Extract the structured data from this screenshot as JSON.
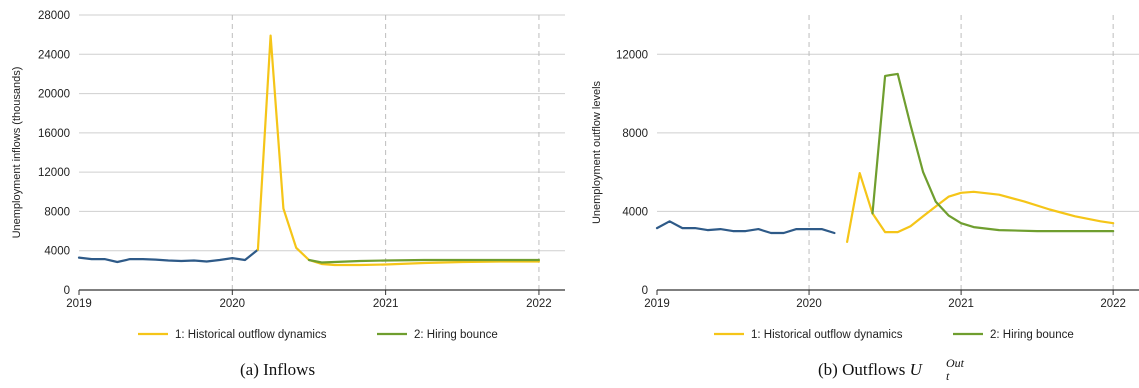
{
  "colors": {
    "historical": "#F5C518",
    "hiring": "#6F9E2F",
    "observed": "#2E5A88",
    "axis": "#333333",
    "grid": "#cfcfcf"
  },
  "chart_data": [
    {
      "type": "line",
      "title": "",
      "caption": "(a) Inflows",
      "xlabel": "",
      "ylabel": "Unemployment inflows (thousands)",
      "xlim": [
        2019,
        2022.17
      ],
      "ylim": [
        0,
        28000
      ],
      "x_ticks": [
        "2019",
        "2020",
        "2021",
        "2022"
      ],
      "y_ticks": [
        "0",
        "4000",
        "8000",
        "12000",
        "16000",
        "20000",
        "24000",
        "28000"
      ],
      "grid": "horizontal",
      "vertical_dashed_at": [
        2020,
        2021,
        2022
      ],
      "legend": [
        "1: Historical outflow dynamics",
        "2: Hiring bounce"
      ],
      "legend_position": "bottom",
      "series": [
        {
          "name": "",
          "color_key": "observed",
          "points": [
            [
              2019.0,
              3300
            ],
            [
              2019.083,
              3150
            ],
            [
              2019.167,
              3150
            ],
            [
              2019.25,
              2850
            ],
            [
              2019.333,
              3150
            ],
            [
              2019.417,
              3150
            ],
            [
              2019.5,
              3100
            ],
            [
              2019.583,
              3000
            ],
            [
              2019.667,
              2950
            ],
            [
              2019.75,
              3000
            ],
            [
              2019.833,
              2900
            ],
            [
              2019.917,
              3050
            ],
            [
              2020.0,
              3250
            ],
            [
              2020.083,
              3050
            ],
            [
              2020.167,
              4100
            ]
          ]
        },
        {
          "name": "1: Historical outflow dynamics",
          "color_key": "historical",
          "points": [
            [
              2020.167,
              4100
            ],
            [
              2020.25,
              25900
            ],
            [
              2020.333,
              8300
            ],
            [
              2020.417,
              4300
            ],
            [
              2020.5,
              3050
            ],
            [
              2020.583,
              2650
            ],
            [
              2020.667,
              2550
            ],
            [
              2020.75,
              2550
            ],
            [
              2020.833,
              2550
            ],
            [
              2021.0,
              2600
            ],
            [
              2021.25,
              2750
            ],
            [
              2021.5,
              2850
            ],
            [
              2021.75,
              2900
            ],
            [
              2022.0,
              2900
            ]
          ]
        },
        {
          "name": "2: Hiring bounce",
          "color_key": "hiring",
          "points": [
            [
              2020.5,
              3050
            ],
            [
              2020.583,
              2800
            ],
            [
              2020.667,
              2850
            ],
            [
              2020.833,
              2950
            ],
            [
              2021.0,
              3000
            ],
            [
              2021.25,
              3050
            ],
            [
              2021.5,
              3050
            ],
            [
              2021.75,
              3050
            ],
            [
              2022.0,
              3050
            ]
          ]
        }
      ]
    },
    {
      "type": "line",
      "title": "",
      "caption": "(b) Outflows",
      "caption_math": {
        "base": "U",
        "sub": "t",
        "sup": "Out"
      },
      "xlabel": "",
      "ylabel": "Unemployment outflow levels",
      "xlim": [
        2019,
        2022.17
      ],
      "ylim": [
        0,
        14000
      ],
      "x_ticks": [
        "2019",
        "2020",
        "2021",
        "2022"
      ],
      "y_ticks": [
        "0",
        "4000",
        "8000",
        "12000"
      ],
      "grid": "horizontal",
      "vertical_dashed_at": [
        2020,
        2021,
        2022
      ],
      "legend": [
        "1: Historical outflow dynamics",
        "2: Hiring bounce"
      ],
      "legend_position": "bottom",
      "series": [
        {
          "name": "",
          "color_key": "observed",
          "points": [
            [
              2019.0,
              3150
            ],
            [
              2019.083,
              3500
            ],
            [
              2019.167,
              3150
            ],
            [
              2019.25,
              3150
            ],
            [
              2019.333,
              3050
            ],
            [
              2019.417,
              3100
            ],
            [
              2019.5,
              3000
            ],
            [
              2019.583,
              3000
            ],
            [
              2019.667,
              3100
            ],
            [
              2019.75,
              2900
            ],
            [
              2019.833,
              2900
            ],
            [
              2019.917,
              3100
            ],
            [
              2020.0,
              3100
            ],
            [
              2020.083,
              3100
            ],
            [
              2020.167,
              2900
            ]
          ]
        },
        {
          "name": "1: Historical outflow dynamics",
          "color_key": "historical",
          "points": [
            [
              2020.25,
              2450
            ],
            [
              2020.333,
              5950
            ],
            [
              2020.417,
              3900
            ],
            [
              2020.5,
              2950
            ],
            [
              2020.583,
              2950
            ],
            [
              2020.667,
              3250
            ],
            [
              2020.75,
              3750
            ],
            [
              2020.833,
              4250
            ],
            [
              2020.917,
              4750
            ],
            [
              2021.0,
              4950
            ],
            [
              2021.083,
              5000
            ],
            [
              2021.25,
              4850
            ],
            [
              2021.417,
              4500
            ],
            [
              2021.583,
              4100
            ],
            [
              2021.75,
              3750
            ],
            [
              2021.917,
              3500
            ],
            [
              2022.0,
              3400
            ]
          ]
        },
        {
          "name": "2: Hiring bounce",
          "color_key": "hiring",
          "points": [
            [
              2020.417,
              3900
            ],
            [
              2020.5,
              10900
            ],
            [
              2020.583,
              11000
            ],
            [
              2020.667,
              8400
            ],
            [
              2020.75,
              6000
            ],
            [
              2020.833,
              4500
            ],
            [
              2020.917,
              3800
            ],
            [
              2021.0,
              3400
            ],
            [
              2021.083,
              3200
            ],
            [
              2021.25,
              3050
            ],
            [
              2021.5,
              3000
            ],
            [
              2021.75,
              3000
            ],
            [
              2022.0,
              3000
            ]
          ]
        }
      ]
    }
  ]
}
